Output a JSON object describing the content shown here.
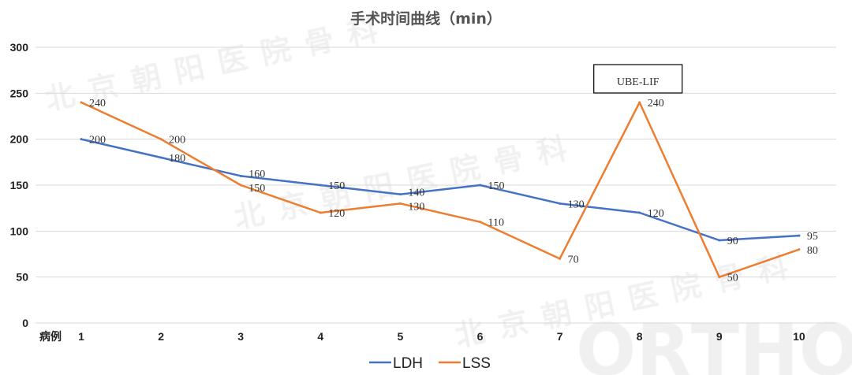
{
  "chart_data": {
    "type": "line",
    "title": "手术时间曲线（min）",
    "xlabel": "病例",
    "categories": [
      "1",
      "2",
      "3",
      "4",
      "5",
      "6",
      "7",
      "8",
      "9",
      "10"
    ],
    "yticks": [
      "0",
      "50",
      "100",
      "150",
      "200",
      "250",
      "300"
    ],
    "ylim": [
      0,
      300
    ],
    "grid": true,
    "legend": "bottom",
    "series": [
      {
        "name": "LDH",
        "color": "#4472C4",
        "values": [
          200,
          180,
          160,
          150,
          140,
          150,
          130,
          120,
          90,
          95
        ]
      },
      {
        "name": "LSS",
        "color": "#ED7D31",
        "values": [
          240,
          200,
          150,
          120,
          130,
          110,
          70,
          240,
          50,
          80
        ]
      }
    ],
    "annotation": {
      "text": "UBE-LIF",
      "category": "8"
    },
    "watermarks": [
      "北京朝阳医院骨科",
      "ORTHO"
    ]
  }
}
